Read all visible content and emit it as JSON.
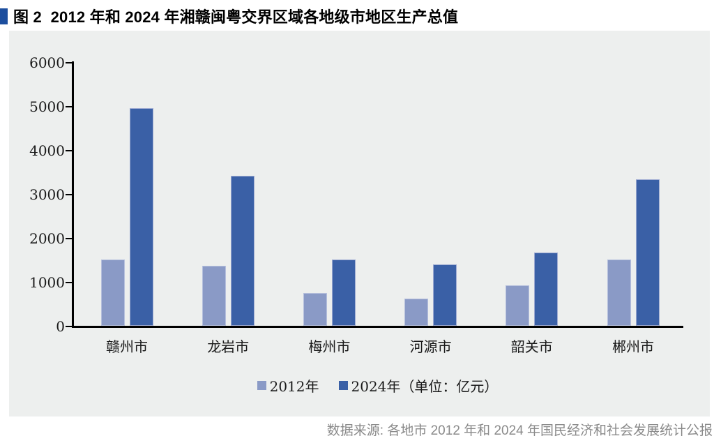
{
  "title": "图 2  2012 年和 2024 年湘赣闽粤交界区域各地级市地区生产总值",
  "source_note": "数据来源: 各地市 2012 年和 2024 年国民经济和社会发展统计公报",
  "legend": {
    "items": [
      {
        "label": "2012年",
        "color": "#8a9ac6"
      },
      {
        "label": "2024年（单位：亿元）",
        "color": "#3a60a6"
      }
    ]
  },
  "colors": {
    "series_2012": "#8a9ac6",
    "series_2024": "#3a60a6",
    "panel_background": "#edefee",
    "title_marker": "#1c4e9e",
    "axis": "#000000",
    "source_text": "#8a8a8a"
  },
  "chart_data": {
    "type": "bar",
    "title": "2012 年和 2024 年湘赣闽粤交界区域各地级市地区生产总值",
    "unit": "亿元",
    "categories": [
      "赣州市",
      "龙岩市",
      "梅州市",
      "河源市",
      "韶关市",
      "郴州市"
    ],
    "series": [
      {
        "name": "2012年",
        "color": "#8a9ac6",
        "values": [
          1510,
          1360,
          740,
          620,
          920,
          1510
        ]
      },
      {
        "name": "2024年",
        "color": "#3a60a6",
        "values": [
          4950,
          3420,
          1510,
          1390,
          1660,
          3330
        ]
      }
    ],
    "ylim": [
      0,
      6000
    ],
    "ytick_step": 1000,
    "grid": false,
    "legend_position": "bottom"
  }
}
